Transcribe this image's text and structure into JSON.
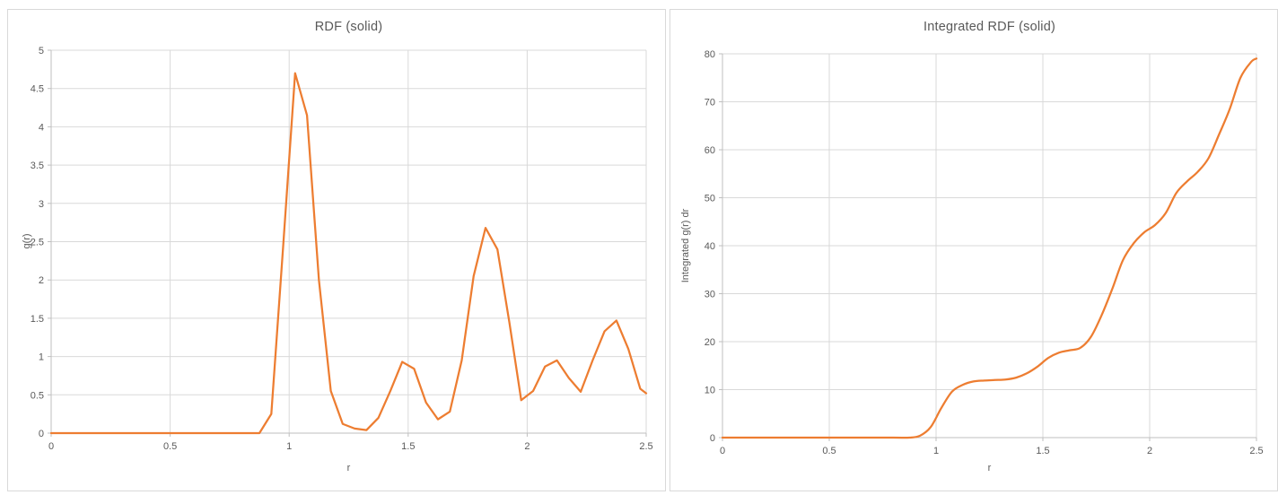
{
  "colors": {
    "series_line": "#ED7D31",
    "gridline": "#D9D9D9",
    "axis_line": "#BFBFBF",
    "tick_text": "#595959",
    "title_text": "#595959",
    "panel_border": "#D9D9D9",
    "background": "#FFFFFF"
  },
  "chart_data": [
    {
      "type": "line",
      "title": "RDF (solid)",
      "xlabel": "r",
      "ylabel": "g(r)",
      "xlim": [
        0,
        2.5
      ],
      "ylim": [
        0,
        5
      ],
      "grid": "on",
      "legend": "none",
      "smooth": false,
      "line_color": "#ED7D31",
      "x_tick_values": [
        0,
        0.5,
        1,
        1.5,
        2,
        2.5
      ],
      "x_tick_labels": [
        "0",
        "0.5",
        "1",
        "1.5",
        "2",
        "2.5"
      ],
      "y_tick_values": [
        0,
        0.5,
        1,
        1.5,
        2,
        2.5,
        3,
        3.5,
        4,
        4.5,
        5
      ],
      "y_tick_labels": [
        "0",
        "0.5",
        "1",
        "1.5",
        "2",
        "2.5",
        "3",
        "3.5",
        "4",
        "4.5",
        "5"
      ],
      "x": [
        0,
        0.2,
        0.4,
        0.6,
        0.8,
        0.875,
        0.925,
        0.975,
        1.025,
        1.075,
        1.125,
        1.175,
        1.225,
        1.275,
        1.325,
        1.375,
        1.425,
        1.475,
        1.525,
        1.575,
        1.625,
        1.675,
        1.725,
        1.775,
        1.825,
        1.875,
        1.925,
        1.975,
        2.025,
        2.075,
        2.125,
        2.175,
        2.225,
        2.275,
        2.325,
        2.375,
        2.425,
        2.475,
        2.5
      ],
      "y": [
        0,
        0,
        0,
        0,
        0,
        0,
        0.25,
        2.45,
        4.7,
        4.15,
        2.0,
        0.55,
        0.12,
        0.06,
        0.04,
        0.2,
        0.55,
        0.93,
        0.84,
        0.4,
        0.18,
        0.28,
        0.95,
        2.05,
        2.68,
        2.4,
        1.45,
        0.43,
        0.55,
        0.87,
        0.95,
        0.72,
        0.54,
        0.95,
        1.33,
        1.47,
        1.1,
        0.58,
        0.52
      ]
    },
    {
      "type": "line",
      "title": "Integrated RDF (solid)",
      "xlabel": "r",
      "ylabel": "Integrated g(r) dr",
      "xlim": [
        0,
        2.5
      ],
      "ylim": [
        0,
        80
      ],
      "grid": "on",
      "legend": "none",
      "smooth": true,
      "line_color": "#ED7D31",
      "x_tick_values": [
        0,
        0.5,
        1,
        1.5,
        2,
        2.5
      ],
      "x_tick_labels": [
        "0",
        "0.5",
        "1",
        "1.5",
        "2",
        "2.5"
      ],
      "y_tick_values": [
        0,
        10,
        20,
        30,
        40,
        50,
        60,
        70,
        80
      ],
      "y_tick_labels": [
        "0",
        "10",
        "20",
        "30",
        "40",
        "50",
        "60",
        "70",
        "80"
      ],
      "x": [
        0,
        0.2,
        0.4,
        0.6,
        0.8,
        0.875,
        0.925,
        0.975,
        1.025,
        1.075,
        1.125,
        1.175,
        1.225,
        1.275,
        1.325,
        1.375,
        1.425,
        1.475,
        1.525,
        1.575,
        1.625,
        1.675,
        1.725,
        1.775,
        1.825,
        1.875,
        1.925,
        1.975,
        2.025,
        2.075,
        2.125,
        2.175,
        2.225,
        2.275,
        2.325,
        2.375,
        2.425,
        2.475,
        2.5
      ],
      "y": [
        0,
        0,
        0,
        0,
        0,
        0,
        0.4,
        2.2,
        6.2,
        9.6,
        11.0,
        11.7,
        11.9,
        12.0,
        12.1,
        12.5,
        13.4,
        14.8,
        16.6,
        17.7,
        18.2,
        18.7,
        21.0,
        25.5,
        31.0,
        37.0,
        40.5,
        42.8,
        44.3,
        46.8,
        51.0,
        53.4,
        55.4,
        58.2,
        63.2,
        68.5,
        75.0,
        78.3,
        79.0
      ]
    }
  ]
}
